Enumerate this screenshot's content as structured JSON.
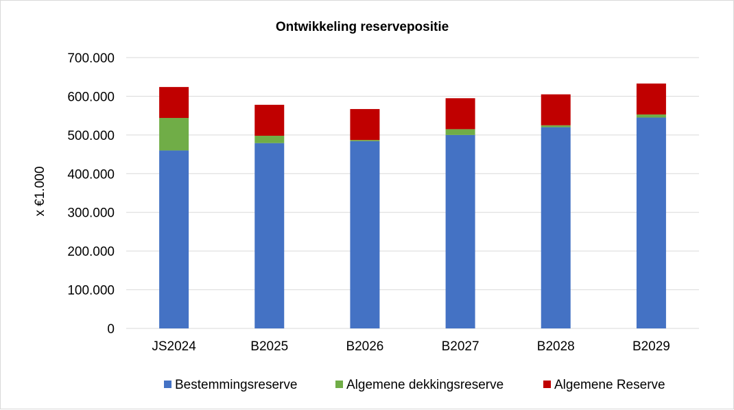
{
  "chart_data": {
    "type": "bar",
    "stacked": true,
    "title": "Ontwikkeling reservepositie",
    "xlabel": "",
    "ylabel": "x €1.000",
    "categories": [
      "JS2024",
      "B2025",
      "B2026",
      "B2027",
      "B2028",
      "B2029"
    ],
    "series": [
      {
        "name": "Bestemmingsreserve",
        "color": "#4472C4",
        "values": [
          460000,
          479000,
          484000,
          500000,
          520000,
          545000
        ]
      },
      {
        "name": "Algemene dekkingsreserve",
        "color": "#70AD47",
        "values": [
          84000,
          19000,
          3000,
          15000,
          5000,
          8000
        ]
      },
      {
        "name": "Algemene Reserve",
        "color": "#C00000",
        "values": [
          80000,
          80000,
          80000,
          80000,
          80000,
          80000
        ]
      }
    ],
    "ylim": [
      0,
      700000
    ],
    "yticks": [
      0,
      100000,
      200000,
      300000,
      400000,
      500000,
      600000,
      700000
    ],
    "ytick_labels": [
      "0",
      "100.000",
      "200.000",
      "300.000",
      "400.000",
      "500.000",
      "600.000",
      "700.000"
    ],
    "grid": true,
    "legend_position": "bottom"
  }
}
